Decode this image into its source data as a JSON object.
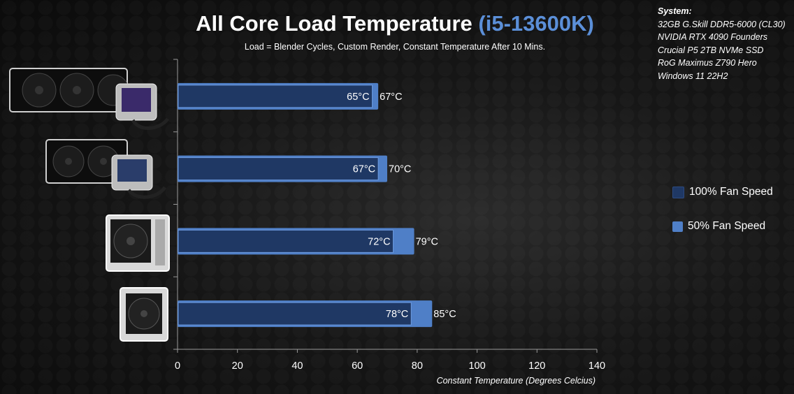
{
  "title": {
    "main": "All Core Load Temperature",
    "accent": "(i5-13600K)"
  },
  "subtitle": "Load = Blender Cycles, Custom Render, Constant Temperature After 10 Mins.",
  "system": {
    "heading": "System:",
    "lines": [
      "32GB G.Skill DDR5-6000 (CL30)",
      "NVIDIA RTX 4090 Founders",
      "Crucial P5 2TB NVMe SSD",
      "RoG Maximus Z790 Hero",
      "Windows 11 22H2"
    ]
  },
  "colors": {
    "full": "#1f3864",
    "half": "#4f7fc7",
    "accent": "#5b8fd8",
    "border": "#6d9be0"
  },
  "coolers": [
    {
      "icon": "aio-360-cooler-display-icon"
    },
    {
      "icon": "aio-360-cooler-icon"
    },
    {
      "icon": "dual-tower-air-cooler-icon"
    },
    {
      "icon": "single-tower-air-cooler-icon"
    }
  ],
  "chart_data": {
    "type": "bar",
    "orientation": "horizontal",
    "xlabel": "Constant Temperature (Degrees Celcius)",
    "xlim": [
      0,
      140
    ],
    "xticks": [
      0,
      20,
      40,
      60,
      80,
      100,
      120,
      140
    ],
    "legend_position": "right",
    "series": [
      {
        "name": "100% Fan Speed",
        "values": [
          65,
          67,
          72,
          78
        ],
        "labels": [
          "65°C",
          "67°C",
          "72°C",
          "78°C"
        ]
      },
      {
        "name": "50% Fan Speed",
        "values": [
          67,
          70,
          79,
          85
        ],
        "labels": [
          "67°C",
          "70°C",
          "79°C",
          "85°C"
        ]
      }
    ]
  }
}
